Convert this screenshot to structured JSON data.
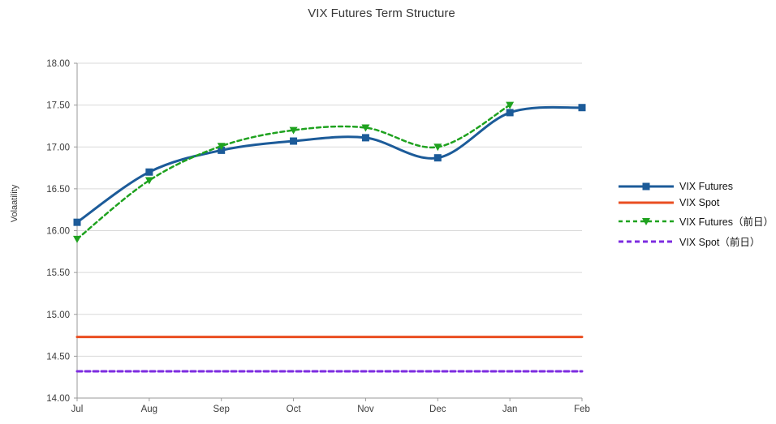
{
  "chart_data": {
    "type": "line",
    "title": "VIX Futures Term Structure",
    "xlabel": "",
    "ylabel": "Volaatility",
    "categories": [
      "Jul",
      "Aug",
      "Sep",
      "Oct",
      "Nov",
      "Dec",
      "Jan",
      "Feb"
    ],
    "ylim": [
      14.0,
      18.0
    ],
    "ytick_step": 0.5,
    "grid": true,
    "legend_position": "right",
    "colors": {
      "grid": "#d9d9d9",
      "axis": "#9a9a9a",
      "tick_text": "#3c3c3c"
    },
    "series": [
      {
        "name": "VIX Futures",
        "values": [
          16.1,
          16.7,
          16.96,
          17.07,
          17.11,
          16.87,
          17.41,
          17.47
        ],
        "color": "#1c5b99",
        "dash": "solid",
        "dasharray": "",
        "marker": "square",
        "smooth": true,
        "width": 3
      },
      {
        "name": "VIX Spot",
        "values": [
          14.73,
          14.73,
          14.73,
          14.73,
          14.73,
          14.73,
          14.73,
          14.73
        ],
        "color": "#ea4e21",
        "dash": "solid",
        "dasharray": "",
        "marker": "none",
        "smooth": false,
        "width": 3
      },
      {
        "name": "VIX Futures（前日）",
        "values": [
          15.9,
          16.6,
          17.01,
          17.2,
          17.23,
          17.0,
          17.5,
          null
        ],
        "color": "#1fa21f",
        "dash": "dashed",
        "dasharray": "5 4",
        "marker": "triangle-down",
        "smooth": true,
        "width": 2.5
      },
      {
        "name": "VIX Spot（前日）",
        "values": [
          14.32,
          14.32,
          14.32,
          14.32,
          14.32,
          14.32,
          14.32,
          14.32
        ],
        "color": "#7d2ce0",
        "dash": "dashed",
        "dasharray": "6 4",
        "marker": "none",
        "smooth": false,
        "width": 3
      }
    ]
  }
}
